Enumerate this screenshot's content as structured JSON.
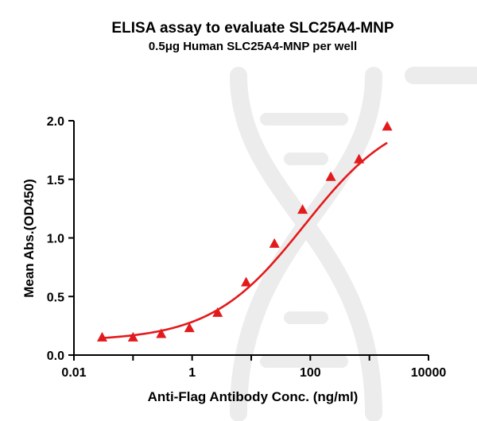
{
  "chart_data": {
    "type": "scatter",
    "title": "ELISA assay to evaluate SLC25A4-MNP",
    "subtitle": "0.5μg Human SLC25A4-MNP per well",
    "xlabel": "Anti-Flag Antibody Conc. (ng/ml)",
    "ylabel": "Mean Abs.(OD450)",
    "xscale": "log10",
    "xlim": [
      0.01,
      10000
    ],
    "ylim": [
      0.0,
      2.0
    ],
    "xticks": [
      0.01,
      1,
      100,
      10000
    ],
    "xtick_labels": [
      "0.01",
      "1",
      "100",
      "10000"
    ],
    "yticks": [
      0.0,
      0.5,
      1.0,
      1.5,
      2.0
    ],
    "ytick_labels": [
      "0.0",
      "0.5",
      "1.0",
      "1.5",
      "2.0"
    ],
    "series": [
      {
        "name": "SLC25A4-MNP",
        "marker": "triangle",
        "color": "#e31a1c",
        "x": [
          0.03,
          0.1,
          0.3,
          0.9,
          2.7,
          8.2,
          24.7,
          74,
          222,
          667,
          2000
        ],
        "y": [
          0.15,
          0.15,
          0.18,
          0.23,
          0.36,
          0.62,
          0.95,
          1.24,
          1.52,
          1.67,
          1.95
        ]
      }
    ],
    "fit": {
      "type": "4PL",
      "bottom": 0.12,
      "top": 2.1,
      "ec50": 80,
      "hill": 0.55,
      "x_range": [
        0.03,
        2000
      ],
      "color": "#e31a1c"
    },
    "grid": false,
    "legend": "none"
  }
}
